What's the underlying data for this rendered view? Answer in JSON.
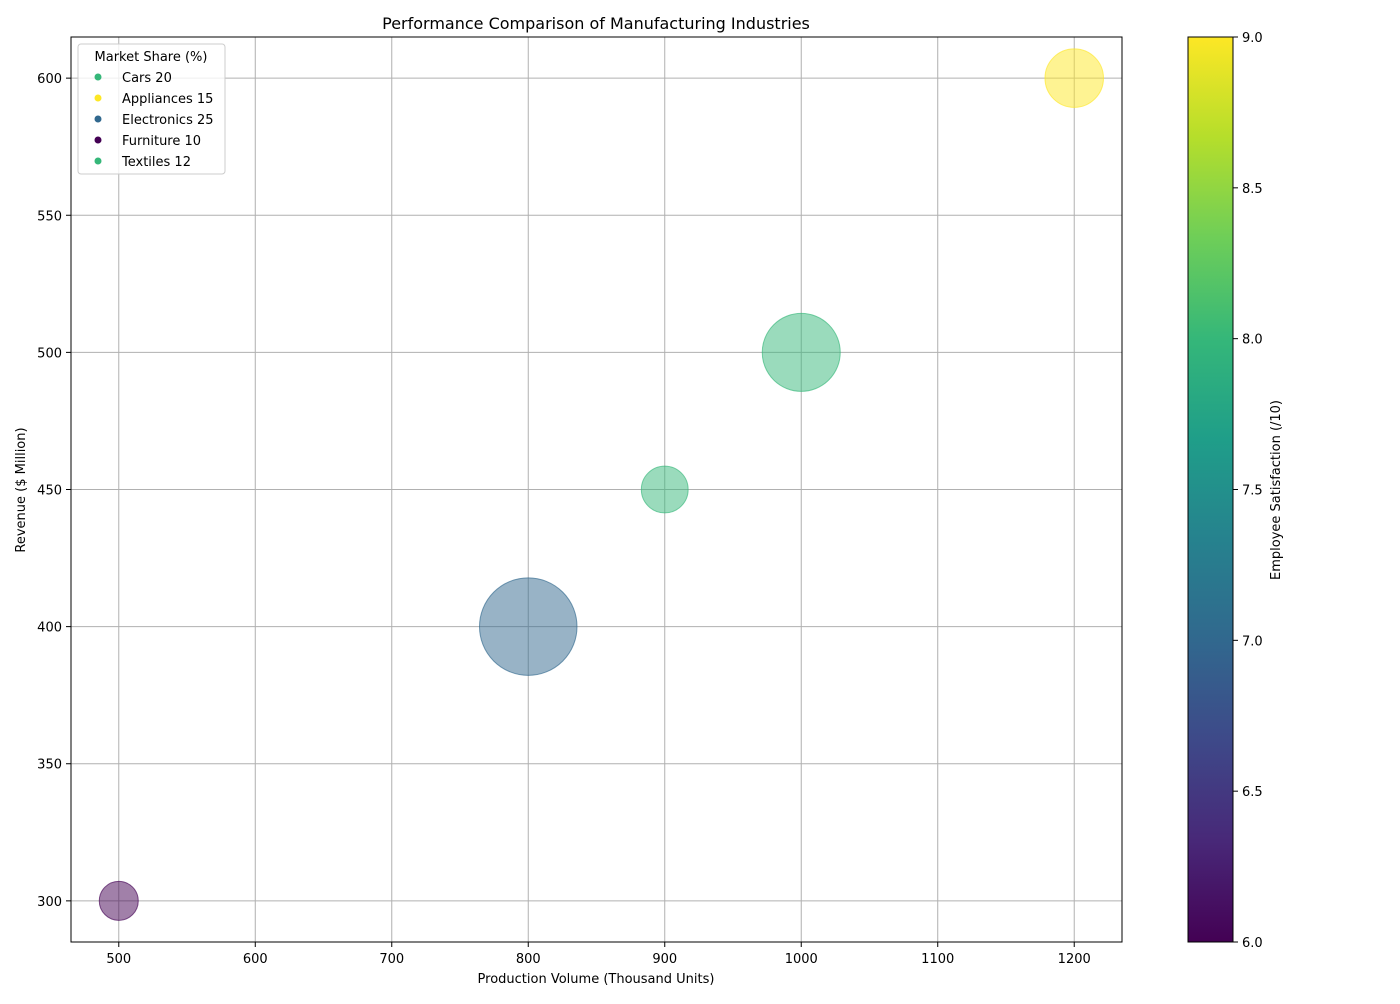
{
  "chart_data": {
    "type": "scatter",
    "title": "Performance Comparison of Manufacturing Industries",
    "xlabel": "Production Volume (Thousand Units)",
    "ylabel": "Revenue ($ Million)",
    "xlim": [
      465,
      1235
    ],
    "ylim": [
      285,
      615
    ],
    "xticks": [
      500,
      600,
      700,
      800,
      900,
      1000,
      1100,
      1200
    ],
    "yticks": [
      300,
      350,
      400,
      450,
      500,
      550,
      600
    ],
    "grid": true,
    "legend": {
      "title": "Market Share (%)",
      "placement": "upper-left",
      "entries": [
        "Cars 20",
        "Appliances 15",
        "Electronics 25",
        "Furniture 10",
        "Textiles 12"
      ]
    },
    "colorbar": {
      "label": "Employee Satisfaction (/10)",
      "min": 6.0,
      "max": 9.0,
      "ticks": [
        "6.0",
        "6.5",
        "7.0",
        "7.5",
        "8.0",
        "8.5",
        "9.0"
      ],
      "colormap": [
        "#440154",
        "#482878",
        "#3e4989",
        "#31688e",
        "#26828e",
        "#1f9e89",
        "#35b779",
        "#6ece58",
        "#b5de2b",
        "#fde725"
      ]
    },
    "series": [
      {
        "name": "Cars",
        "x": 1000,
        "y": 500,
        "market_share": 20,
        "satisfaction": 8.0
      },
      {
        "name": "Appliances",
        "x": 1200,
        "y": 600,
        "market_share": 15,
        "satisfaction": 9.0
      },
      {
        "name": "Electronics",
        "x": 800,
        "y": 400,
        "market_share": 25,
        "satisfaction": 7.0
      },
      {
        "name": "Furniture",
        "x": 500,
        "y": 300,
        "market_share": 10,
        "satisfaction": 6.0
      },
      {
        "name": "Textiles",
        "x": 900,
        "y": 450,
        "market_share": 12,
        "satisfaction": 8.0
      }
    ],
    "point_alpha": 0.5
  }
}
